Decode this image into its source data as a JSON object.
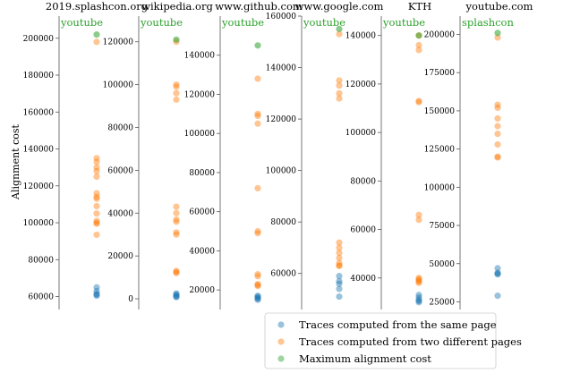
{
  "chart_data": {
    "type": "scatter",
    "ylabel": "Alignment cost",
    "colors": {
      "same": "#1f77b4",
      "different": "#ff7f0e",
      "max": "#2ca02c",
      "annotation": "#2ca02c"
    },
    "legend": {
      "placement": "bottom-center",
      "entries": [
        {
          "key": "same",
          "label": "Traces computed from the same page"
        },
        {
          "key": "different",
          "label": "Traces computed from two different pages"
        },
        {
          "key": "max",
          "label": "Maximum alignment cost"
        }
      ]
    },
    "panels": [
      {
        "title": "2019.splashcon.org",
        "annotation": "youtube",
        "ylim": [
          53000,
          212000
        ],
        "yticks": [
          60000,
          80000,
          100000,
          120000,
          140000,
          160000,
          180000,
          200000
        ],
        "same": [
          65000,
          63000,
          61500,
          61000,
          60500
        ],
        "different": [
          198000,
          135000,
          133000,
          130000,
          128000,
          125000,
          116000,
          114000,
          113000,
          109000,
          105000,
          101000,
          100000,
          99500,
          93500
        ],
        "max": [
          202000
        ]
      },
      {
        "title": "wikipedia.org",
        "annotation": "youtube",
        "ylim": [
          -5000,
          132000
        ],
        "yticks": [
          0,
          20000,
          40000,
          60000,
          80000,
          100000,
          120000
        ],
        "same": [
          2500,
          2000,
          1500,
          1000,
          800
        ],
        "different": [
          120000,
          100000,
          99000,
          96000,
          93000,
          43000,
          40000,
          37000,
          36000,
          31000,
          30000,
          13000,
          12500,
          12000
        ],
        "max": [
          121000
        ]
      },
      {
        "title": "www.github.com",
        "annotation": "youtube",
        "ylim": [
          10000,
          160000
        ],
        "yticks": [
          20000,
          40000,
          60000,
          80000,
          100000,
          120000,
          140000
        ],
        "same": [
          17000,
          16500,
          16000,
          15500,
          15000
        ],
        "different": [
          128000,
          110000,
          109000,
          105000,
          72000,
          50000,
          49000,
          28000,
          27000,
          23000,
          22500,
          22000
        ],
        "max": [
          145000
        ]
      },
      {
        "title": "www.google.com",
        "annotation": "youtube",
        "ylim": [
          46000,
          160000
        ],
        "yticks": [
          60000,
          80000,
          100000,
          120000,
          140000,
          160000
        ],
        "same": [
          59000,
          57000,
          56000,
          54000,
          51000
        ],
        "different": [
          153000,
          135000,
          133000,
          130000,
          128000,
          72000,
          70000,
          68000,
          66000,
          64000,
          63000,
          63000
        ],
        "max": [
          155000
        ]
      },
      {
        "title": "KTH",
        "annotation": "youtube",
        "ylim": [
          27000,
          148000
        ],
        "yticks": [
          40000,
          60000,
          80000,
          100000,
          120000,
          140000
        ],
        "same": [
          33000,
          32000,
          31000,
          30500,
          30000
        ],
        "different": [
          140000,
          136000,
          134000,
          113000,
          112500,
          66000,
          64000,
          40000,
          39500,
          39000,
          38500,
          38000
        ],
        "max": [
          140000
        ]
      },
      {
        "title": "youtube.com",
        "annotation": "splashcon",
        "ylim": [
          20000,
          212000
        ],
        "yticks": [
          25000,
          50000,
          75000,
          100000,
          125000,
          150000,
          175000,
          200000
        ],
        "same": [
          47000,
          44000,
          43500,
          43000,
          29000
        ],
        "different": [
          198000,
          154000,
          152000,
          145000,
          140000,
          135000,
          128000,
          120000,
          119500
        ],
        "max": [
          201000
        ]
      }
    ]
  }
}
